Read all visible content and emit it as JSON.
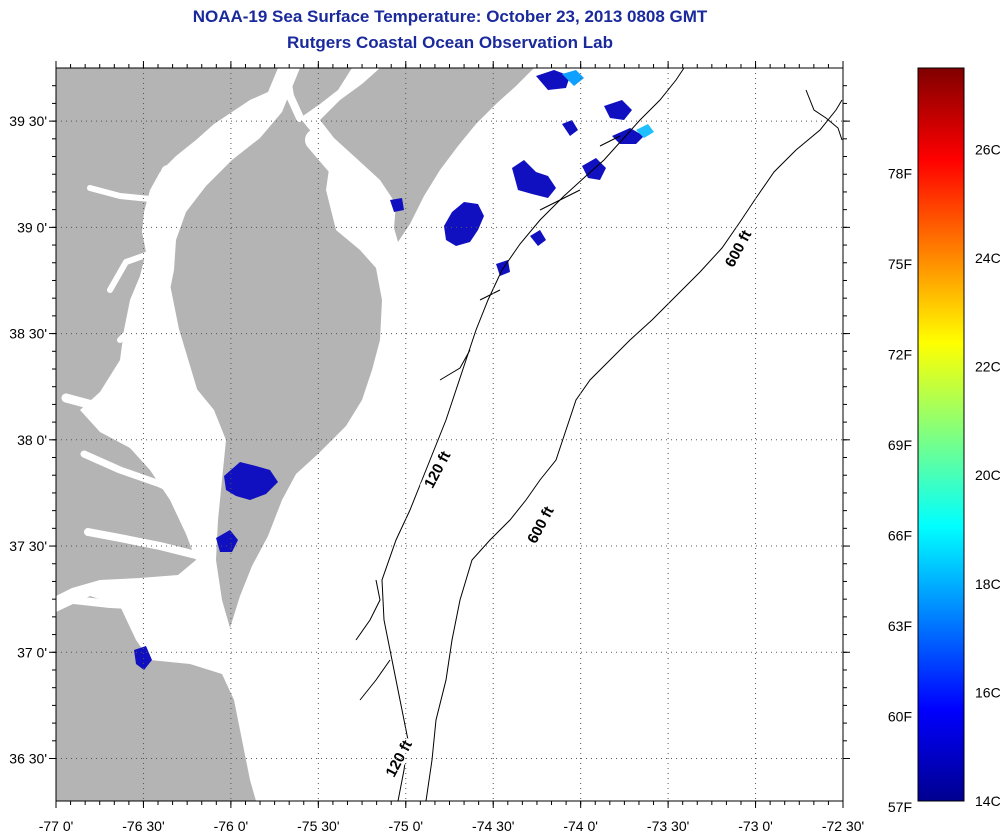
{
  "header": {
    "title": "NOAA-19 Sea Surface Temperature:  October 23, 2013 0808 GMT",
    "subtitle": "Rutgers Coastal Ocean Observation Lab"
  },
  "map": {
    "lon_range": [
      -77.0,
      -72.5
    ],
    "lat_range": [
      36.3,
      39.75
    ],
    "x_ticks": [
      {
        "lon": -77.0,
        "label": "-77 0'"
      },
      {
        "lon": -76.5,
        "label": "-76 30'"
      },
      {
        "lon": -76.0,
        "label": "-76 0'"
      },
      {
        "lon": -75.5,
        "label": "-75 30'"
      },
      {
        "lon": -75.0,
        "label": "-75 0'"
      },
      {
        "lon": -74.5,
        "label": "-74 30'"
      },
      {
        "lon": -74.0,
        "label": "-74 0'"
      },
      {
        "lon": -73.5,
        "label": "-73 30'"
      },
      {
        "lon": -73.0,
        "label": "-73 0'"
      },
      {
        "lon": -72.5,
        "label": "-72 30'"
      }
    ],
    "y_ticks": [
      {
        "lat": 39.5,
        "label": "39 30'"
      },
      {
        "lat": 39.0,
        "label": "39 0'"
      },
      {
        "lat": 38.5,
        "label": "38 30'"
      },
      {
        "lat": 38.0,
        "label": "38 0'"
      },
      {
        "lat": 37.5,
        "label": "37 30'"
      },
      {
        "lat": 37.0,
        "label": "37 0'"
      },
      {
        "lat": 36.5,
        "label": "36 30'"
      }
    ],
    "grid": "dotted",
    "land_color": "#b4b4b4",
    "contour_labels": [
      {
        "text": "600 ft",
        "lon": -73.1,
        "lat": 38.9,
        "rotate": -62
      },
      {
        "text": "120 ft",
        "lon": -74.82,
        "lat": 37.86,
        "rotate": -62
      },
      {
        "text": "600 ft",
        "lon": -74.23,
        "lat": 37.6,
        "rotate": -62
      },
      {
        "text": "120 ft",
        "lon": -75.04,
        "lat": 36.5,
        "rotate": -62
      }
    ]
  },
  "colorbar": {
    "colors": [
      "#00008f",
      "#0000ff",
      "#0080ff",
      "#00ffff",
      "#80ff80",
      "#ffff00",
      "#ff8000",
      "#ff0000",
      "#800000"
    ],
    "range_c": [
      14,
      27.5
    ],
    "c_labels": [
      "14C",
      "16C",
      "18C",
      "20C",
      "22C",
      "24C",
      "26C"
    ],
    "f_labels": [
      "57F",
      "60F",
      "63F",
      "66F",
      "69F",
      "72F",
      "75F",
      "78F"
    ]
  }
}
